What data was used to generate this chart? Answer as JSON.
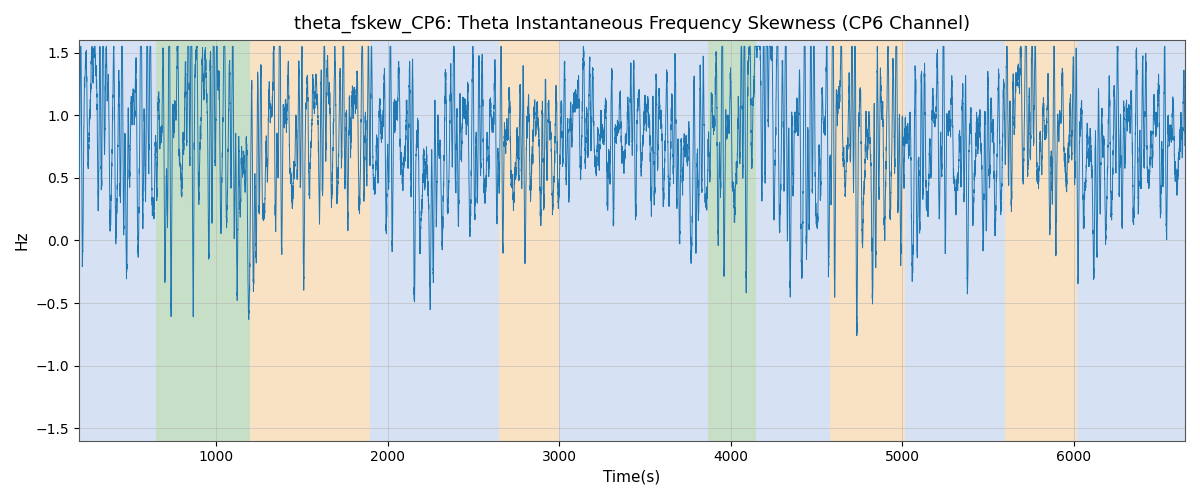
{
  "title": "theta_fskew_CP6: Theta Instantaneous Frequency Skewness (CP6 Channel)",
  "xlabel": "Time(s)",
  "ylabel": "Hz",
  "ylim": [
    -1.6,
    1.6
  ],
  "xlim": [
    200,
    6650
  ],
  "line_color": "#1f77b4",
  "line_width": 0.7,
  "background_color": "#ffffff",
  "grid_color": "#b0b0b0",
  "title_fontsize": 13,
  "label_fontsize": 11,
  "tick_fontsize": 10,
  "bands": [
    {
      "xmin": 200,
      "xmax": 650,
      "color": "#aec6e8",
      "alpha": 0.5
    },
    {
      "xmin": 650,
      "xmax": 1200,
      "color": "#90c090",
      "alpha": 0.5
    },
    {
      "xmin": 1200,
      "xmax": 1900,
      "color": "#f5c48a",
      "alpha": 0.5
    },
    {
      "xmin": 1900,
      "xmax": 2650,
      "color": "#aec6e8",
      "alpha": 0.5
    },
    {
      "xmin": 2650,
      "xmax": 3000,
      "color": "#f5c48a",
      "alpha": 0.5
    },
    {
      "xmin": 3000,
      "xmax": 3780,
      "color": "#aec6e8",
      "alpha": 0.5
    },
    {
      "xmin": 3780,
      "xmax": 3870,
      "color": "#aec6e8",
      "alpha": 0.5
    },
    {
      "xmin": 3870,
      "xmax": 4150,
      "color": "#90c090",
      "alpha": 0.5
    },
    {
      "xmin": 4150,
      "xmax": 4580,
      "color": "#aec6e8",
      "alpha": 0.5
    },
    {
      "xmin": 4580,
      "xmax": 5020,
      "color": "#f5c48a",
      "alpha": 0.5
    },
    {
      "xmin": 5020,
      "xmax": 5600,
      "color": "#aec6e8",
      "alpha": 0.5
    },
    {
      "xmin": 5600,
      "xmax": 6020,
      "color": "#f5c48a",
      "alpha": 0.5
    },
    {
      "xmin": 6020,
      "xmax": 6650,
      "color": "#aec6e8",
      "alpha": 0.5
    }
  ],
  "seed": 17,
  "n_points": 12000,
  "x_start": 200,
  "x_end": 6650,
  "xticks": [
    1000,
    2000,
    3000,
    4000,
    5000,
    6000
  ]
}
